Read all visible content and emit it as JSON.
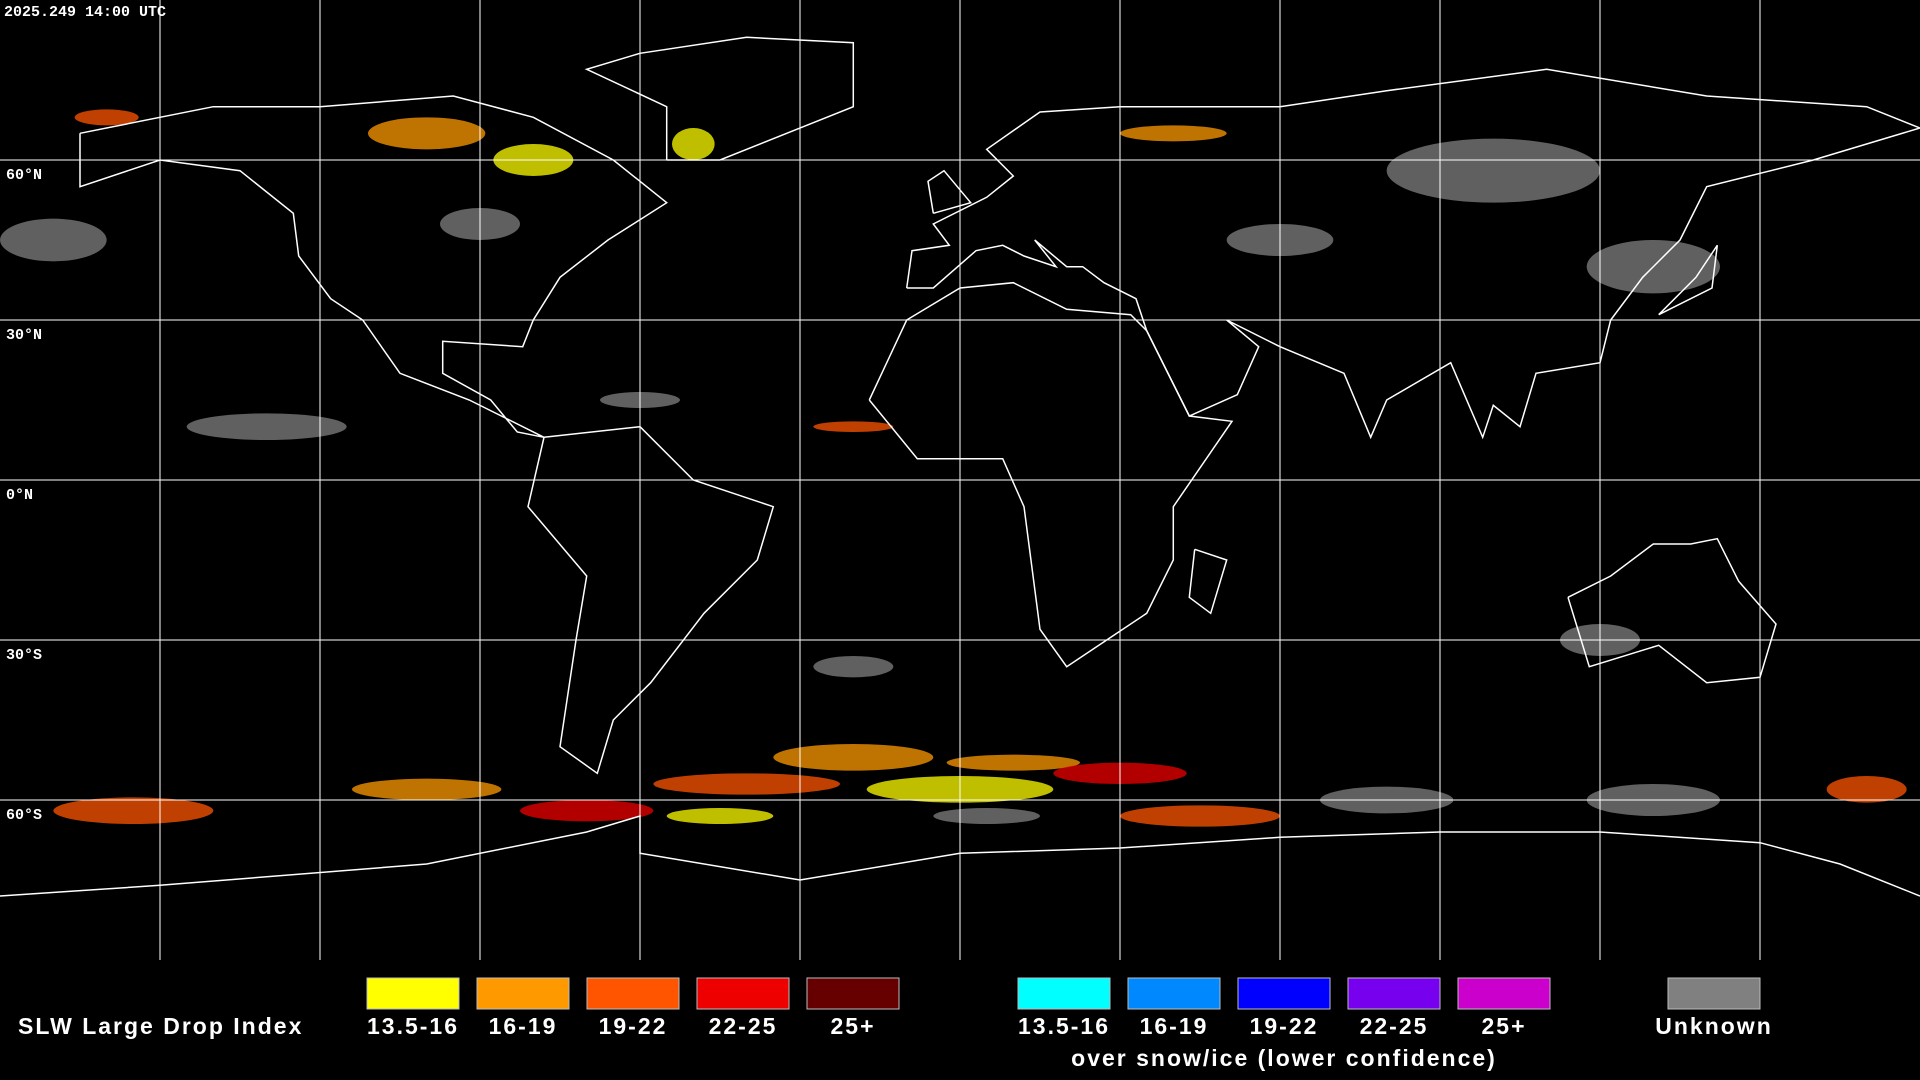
{
  "header": {
    "timestamp": "2025.249 14:00 UTC"
  },
  "map": {
    "latitude_labels": [
      "60°N",
      "30°N",
      "0°N",
      "30°S",
      "60°S"
    ]
  },
  "legend": {
    "title": "SLW Large Drop Index",
    "items": [
      {
        "label": "13.5-16",
        "color": "#ffff00"
      },
      {
        "label": "16-19",
        "color": "#ff9900"
      },
      {
        "label": "19-22",
        "color": "#ff5500"
      },
      {
        "label": "22-25",
        "color": "#ee0000"
      },
      {
        "label": "25+",
        "color": "#660000"
      }
    ],
    "snow_ice_items": [
      {
        "label": "13.5-16",
        "color": "#00ffff"
      },
      {
        "label": "16-19",
        "color": "#0088ff"
      },
      {
        "label": "19-22",
        "color": "#0000ff"
      },
      {
        "label": "22-25",
        "color": "#7700ee"
      },
      {
        "label": "25+",
        "color": "#cc00cc"
      }
    ],
    "snow_ice_note": "over snow/ice (lower confidence)",
    "unknown": {
      "label": "Unknown",
      "color": "#808080"
    }
  }
}
